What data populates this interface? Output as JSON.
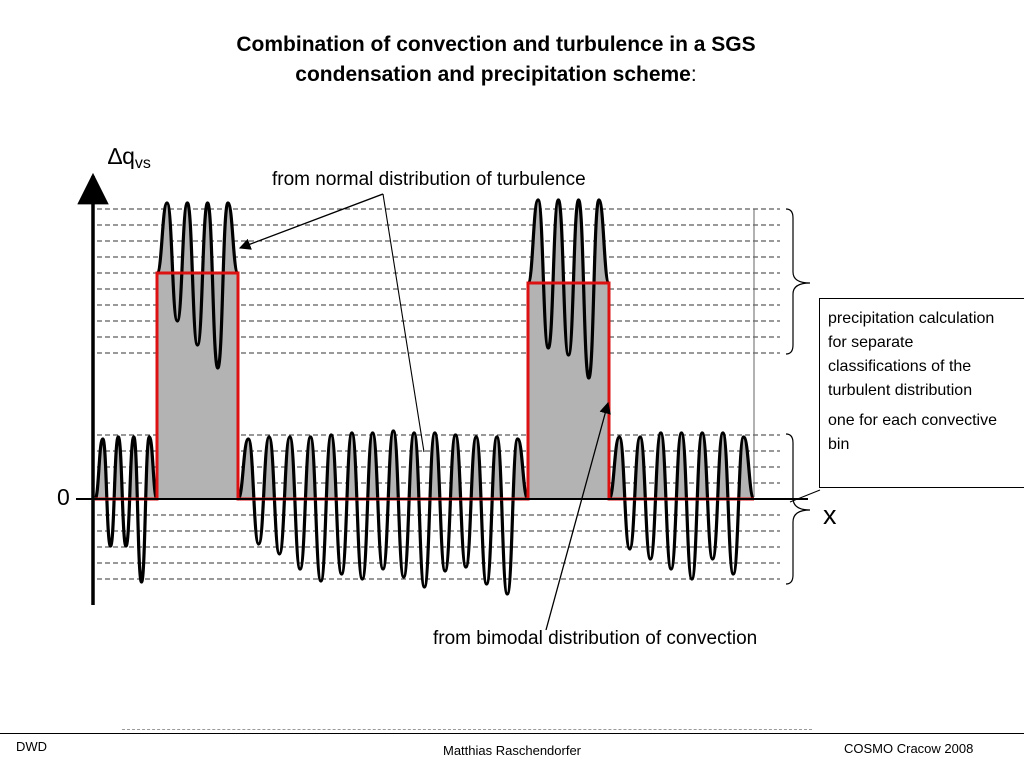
{
  "title": {
    "line1": "Combination of convection and turbulence in a SGS",
    "line2": "condensation and precipitation scheme",
    "colon": ":"
  },
  "axes": {
    "y_label": "∆q",
    "y_label_sub": "vs",
    "x_label": "x",
    "zero_label": "0"
  },
  "annotations": {
    "turbulence": "from normal distribution of turbulence",
    "convection": "from bimodal distribution of convection"
  },
  "info_box": {
    "line1": "precipitation calculation for separate classifications of the turbulent distribution",
    "line2": "one for each convective bin"
  },
  "footer": {
    "left": "DWD",
    "center": "Matthias Raschendorfer",
    "right": "COSMO Cracow  2008"
  },
  "colors": {
    "step_curve": "#dd1111",
    "fill": "#b3b3b3",
    "oscillation": "#000000"
  }
}
